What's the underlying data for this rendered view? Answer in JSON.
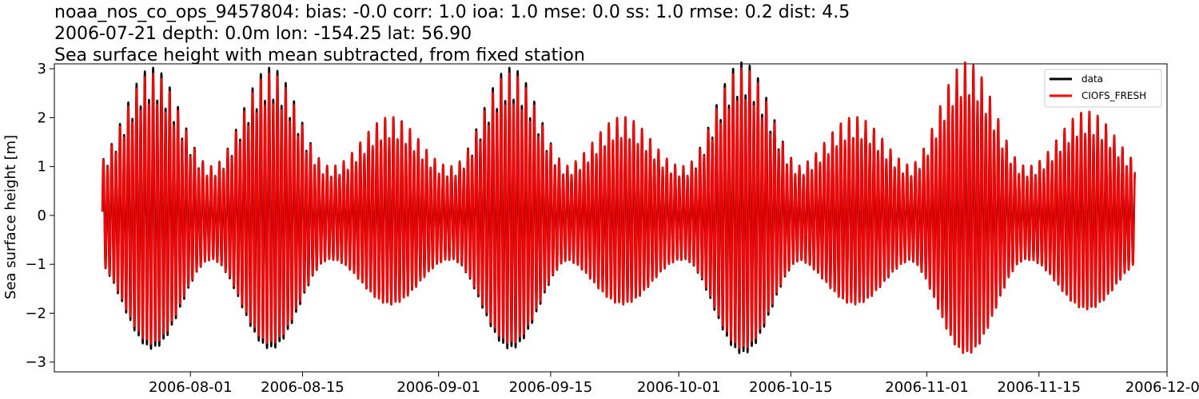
{
  "chart_data": {
    "type": "line",
    "title_lines": [
      "noaa_nos_co_ops_9457804: bias: -0.0  corr: 1.0  ioa: 1.0  mse: 0.0  ss: 1.0  rmse: 0.2  dist: 4.5",
      "2006-07-21 depth: 0.0m lon: -154.25 lat: 56.90",
      "Sea surface height with mean subtracted, from fixed station"
    ],
    "ylabel": "Sea surface height [m]",
    "xlabel": "",
    "xlim": [
      "2006-07-15",
      "2006-12-01"
    ],
    "ylim": [
      -3.2,
      3.1
    ],
    "x_ticks": [
      "2006-08-01",
      "2006-08-15",
      "2006-09-01",
      "2006-09-15",
      "2006-10-01",
      "2006-10-15",
      "2006-11-01",
      "2006-11-15",
      "2006-12-01"
    ],
    "y_ticks": [
      -3,
      -2,
      -1,
      0,
      1,
      2,
      3
    ],
    "y_tick_labels": [
      "−3",
      "−2",
      "−1",
      "0",
      "1",
      "2",
      "3"
    ],
    "grid": false,
    "legend_position": "top-right",
    "data_range": [
      "2006-07-21",
      "2006-11-27"
    ],
    "series": [
      {
        "name": "data",
        "color": "#000000",
        "description_values": "semidiurnal tidal signal",
        "spring_neap_envelope": {
          "peak_dates": [
            "2006-08-11",
            "2006-08-26",
            "2006-09-10",
            "2006-09-24",
            "2006-10-09",
            "2006-10-23",
            "2006-11-06",
            "2006-11-21"
          ],
          "peak_amplitudes_m": [
            2.7,
            1.8,
            2.7,
            1.8,
            2.8,
            1.8,
            2.8,
            1.9
          ],
          "neap_amplitude_m": 0.9
        }
      },
      {
        "name": "CIOFS_FRESH",
        "color": "#ff0000",
        "spring_neap_envelope": {
          "peak_dates": [
            "2006-08-11",
            "2006-08-26",
            "2006-09-10",
            "2006-09-24",
            "2006-10-09",
            "2006-10-23",
            "2006-11-06",
            "2006-11-21"
          ],
          "peak_amplitudes_m": [
            2.6,
            1.8,
            2.6,
            1.8,
            2.7,
            1.8,
            2.8,
            1.9
          ],
          "neap_amplitude_m": 0.9
        }
      }
    ]
  }
}
